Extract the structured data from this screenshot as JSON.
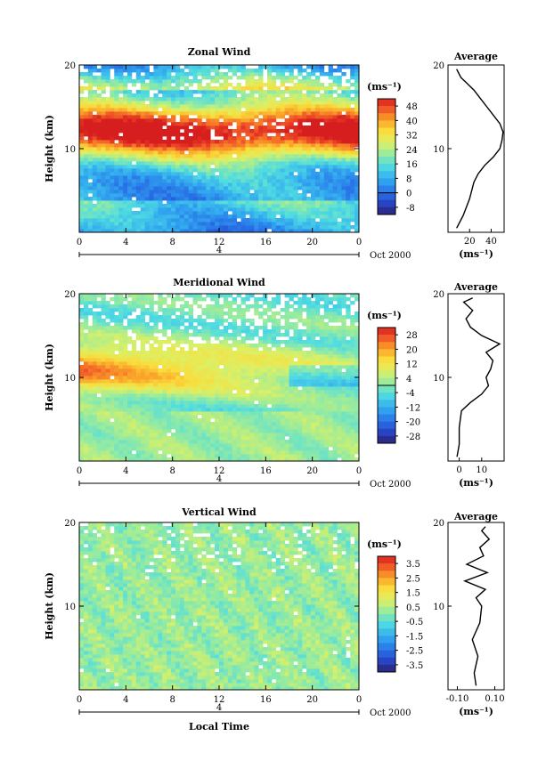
{
  "chart_data": [
    {
      "type": "heatmap",
      "title": "Zonal Wind",
      "xlabel": "",
      "ylabel": "Height (km)",
      "x_ticks": [
        "0",
        "4",
        "8",
        "12",
        "16",
        "20",
        "0"
      ],
      "y_ticks": [
        "10",
        "20"
      ],
      "xlim": [
        0,
        24
      ],
      "ylim": [
        0,
        20
      ],
      "date_marker": "4",
      "date_label": "Oct 2000",
      "colorbar": {
        "unit": "(ms⁻¹)",
        "ticks": [
          "48",
          "40",
          "32",
          "24",
          "16",
          "8",
          "0",
          "-8"
        ],
        "range": [
          -12,
          52
        ],
        "contour_at": 0
      },
      "profile": {
        "title": "Average",
        "xlabel": "(ms⁻¹)",
        "x_ticks": [
          "20",
          "40"
        ],
        "xlim": [
          0,
          52
        ],
        "y_ticks": [
          "10",
          "20"
        ],
        "height": [
          0.5,
          2,
          4,
          6,
          7,
          8,
          9,
          10,
          11,
          12,
          13,
          14,
          15,
          16,
          17,
          18,
          18.5,
          19,
          19.5
        ],
        "values": [
          8,
          14,
          20,
          24,
          28,
          34,
          42,
          48,
          50,
          51,
          48,
          42,
          36,
          30,
          24,
          16,
          12,
          10,
          8
        ]
      }
    },
    {
      "type": "heatmap",
      "title": "Meridional Wind",
      "xlabel": "",
      "ylabel": "Height (km)",
      "x_ticks": [
        "0",
        "4",
        "8",
        "12",
        "16",
        "20",
        "0"
      ],
      "y_ticks": [
        "10",
        "20"
      ],
      "xlim": [
        0,
        24
      ],
      "ylim": [
        0,
        20
      ],
      "date_marker": "4",
      "date_label": "Oct 2000",
      "colorbar": {
        "unit": "(ms⁻¹)",
        "ticks": [
          "28",
          "20",
          "12",
          "4",
          "-4",
          "-12",
          "-20",
          "-28"
        ],
        "range": [
          -32,
          32
        ],
        "contour_at": 0
      },
      "profile": {
        "title": "Average",
        "xlabel": "(ms⁻¹)",
        "x_ticks": [
          "0",
          "10"
        ],
        "xlim": [
          -5,
          20
        ],
        "y_ticks": [
          "10",
          "20"
        ],
        "height": [
          0.5,
          2,
          4,
          6,
          7,
          8,
          9,
          10,
          11,
          12,
          13,
          14,
          15,
          16,
          17,
          18,
          19,
          19.5
        ],
        "values": [
          -1,
          0,
          0,
          1,
          5,
          10,
          13,
          12,
          14,
          15,
          12,
          18,
          10,
          5,
          3,
          6,
          2,
          6
        ]
      }
    },
    {
      "type": "heatmap",
      "title": "Vertical Wind",
      "xlabel": "Local Time",
      "ylabel": "Height (km)",
      "x_ticks": [
        "0",
        "4",
        "8",
        "12",
        "16",
        "20",
        "0"
      ],
      "y_ticks": [
        "10",
        "20"
      ],
      "xlim": [
        0,
        24
      ],
      "ylim": [
        0,
        20
      ],
      "date_marker": "4",
      "date_label": "Oct 2000",
      "colorbar": {
        "unit": "(ms⁻¹)",
        "ticks": [
          "3.5",
          "2.5",
          "1.5",
          "0.5",
          "-0.5",
          "-1.5",
          "-2.5",
          "-3.5"
        ],
        "range": [
          -4,
          4
        ],
        "contour_at": null
      },
      "profile": {
        "title": "Average",
        "xlabel": "(ms⁻¹)",
        "x_ticks": [
          "-0.10",
          "0.10"
        ],
        "xlim": [
          -0.15,
          0.15
        ],
        "y_ticks": [
          "10",
          "20"
        ],
        "height": [
          0.5,
          2,
          4,
          6,
          8,
          10,
          11,
          12,
          13,
          14,
          15,
          16,
          17,
          18,
          19,
          19.5
        ],
        "values": [
          0.0,
          -0.01,
          0.01,
          -0.02,
          0.02,
          0.03,
          0.0,
          0.05,
          -0.06,
          0.06,
          -0.05,
          0.04,
          0.02,
          0.07,
          0.03,
          0.05
        ]
      }
    }
  ]
}
